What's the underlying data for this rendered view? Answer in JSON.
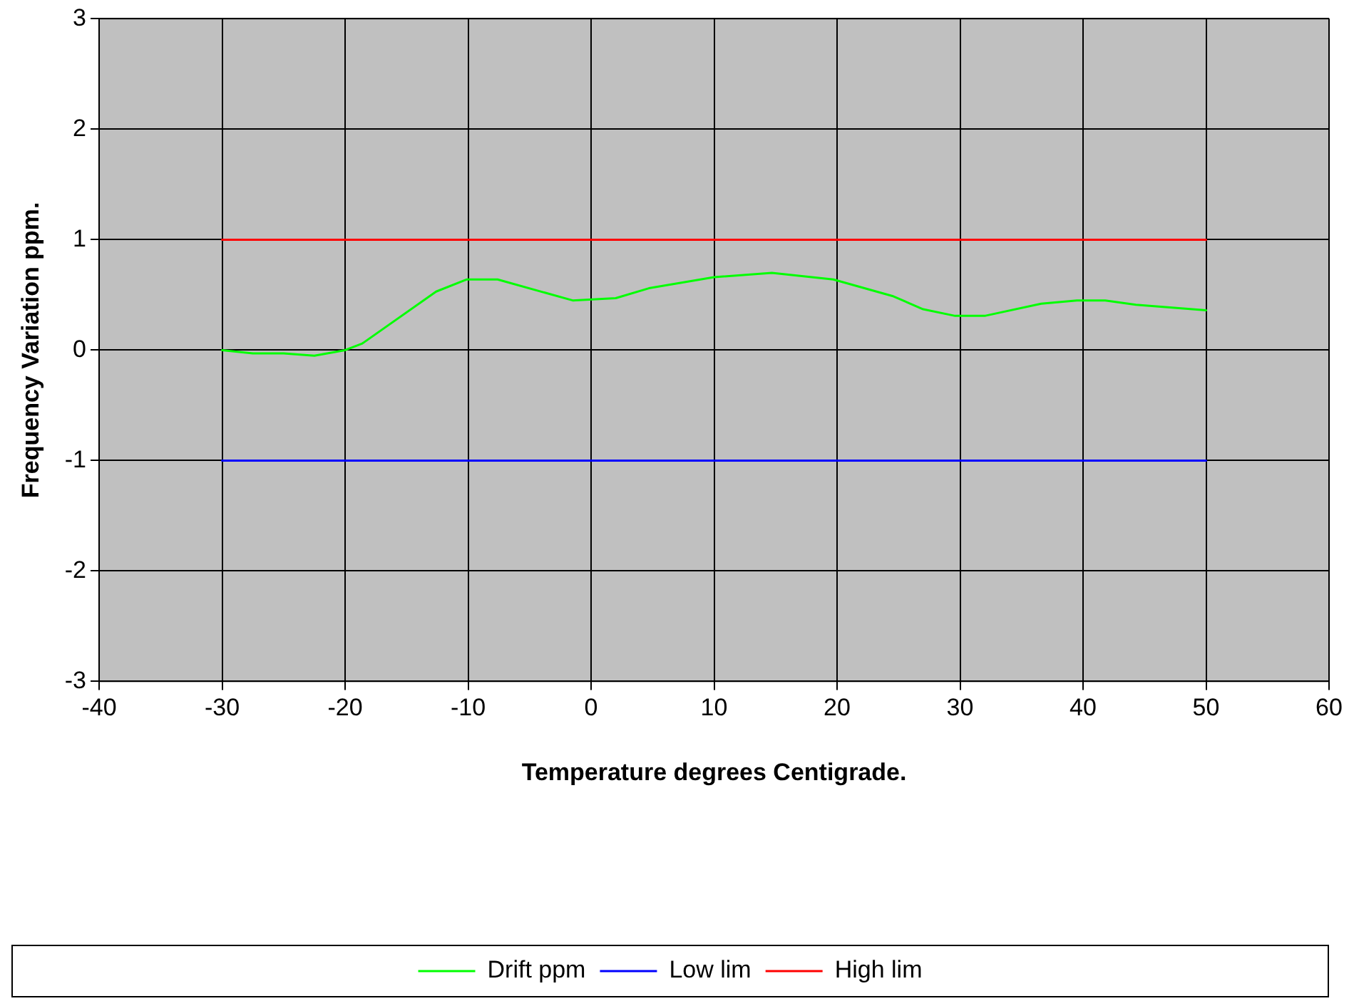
{
  "chart_data": {
    "type": "line",
    "xlabel": "Temperature degrees Centigrade.",
    "ylabel": "Frequency Variation ppm.",
    "xlim": [
      -40,
      60
    ],
    "xticks": [
      -40,
      -30,
      -20,
      -10,
      0,
      10,
      20,
      30,
      40,
      50,
      60
    ],
    "ylim": [
      -3,
      3
    ],
    "yticks": [
      -3,
      -2,
      -1,
      0,
      1,
      2,
      3
    ],
    "grid": true,
    "legend": "bottom",
    "marker": "none",
    "line_style": "solid",
    "series": [
      {
        "name": "Drift ppm",
        "color": "#00ff00",
        "x": [
          -30,
          -27.5,
          -25,
          -22.5,
          -20,
          -18.6,
          -12.6,
          -10.1,
          -7.6,
          -1.5,
          2,
          4.7,
          10,
          14.7,
          19.7,
          24.5,
          27,
          29.6,
          32,
          36.6,
          39.5,
          41.8,
          44.3,
          50
        ],
        "values": [
          0,
          -0.03,
          -0.03,
          -0.05,
          0,
          0.06,
          0.53,
          0.64,
          0.64,
          0.45,
          0.47,
          0.56,
          0.66,
          0.7,
          0.64,
          0.49,
          0.37,
          0.31,
          0.31,
          0.42,
          0.45,
          0.45,
          0.41,
          0.36
        ]
      },
      {
        "name": "Low lim",
        "color": "#0000ff",
        "x": [
          -30,
          50
        ],
        "values": [
          -1,
          -1
        ]
      },
      {
        "name": "High lim",
        "color": "#ff0000",
        "x": [
          -30,
          50
        ],
        "values": [
          1,
          1
        ]
      }
    ]
  }
}
